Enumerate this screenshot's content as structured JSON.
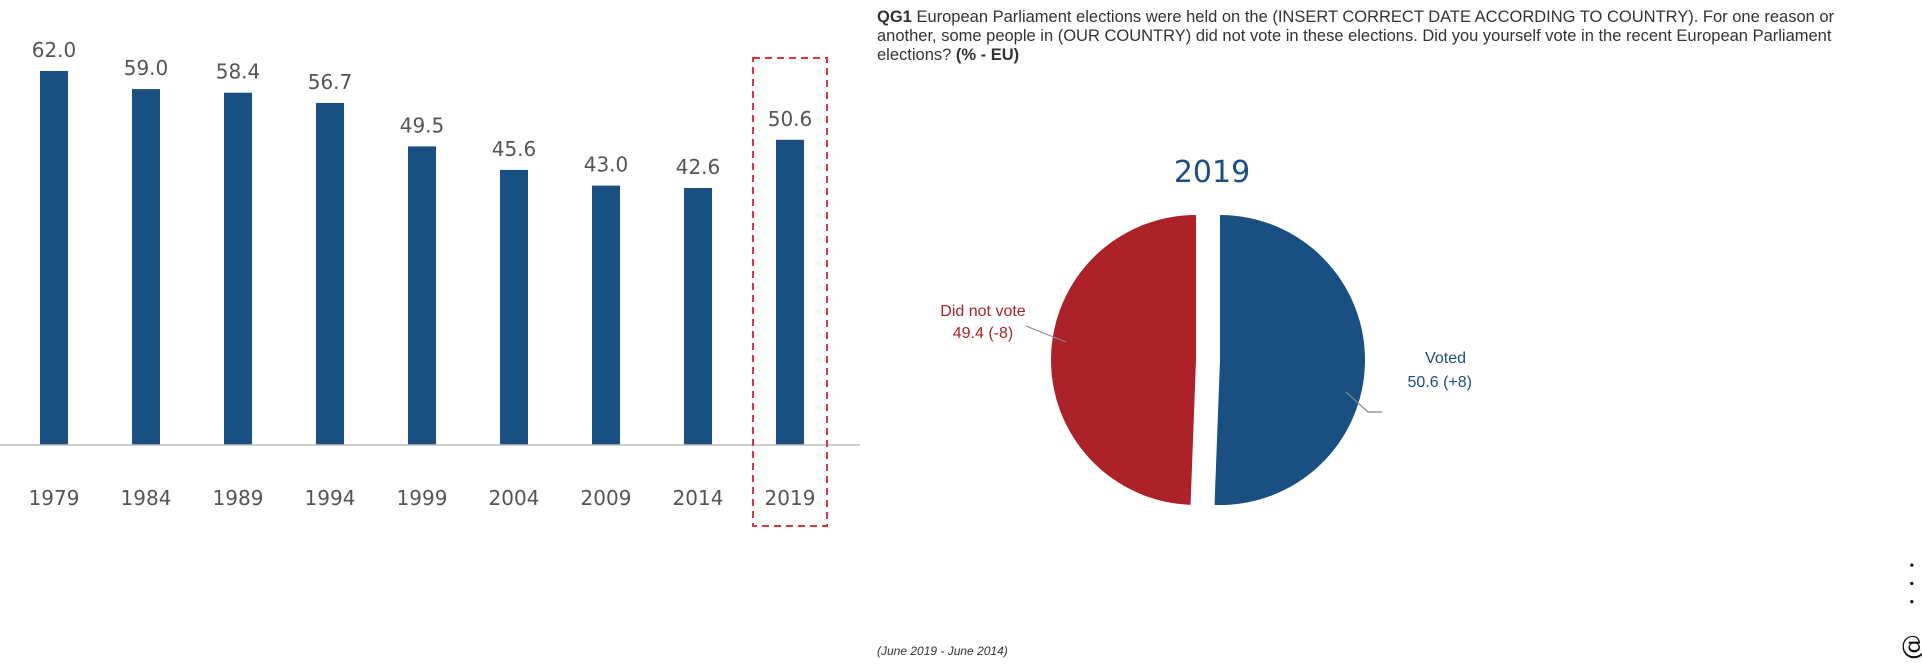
{
  "chart_data": [
    {
      "type": "bar",
      "categories": [
        "1979",
        "1984",
        "1989",
        "1994",
        "1999",
        "2004",
        "2009",
        "2014",
        "2019"
      ],
      "values": [
        62.0,
        59.0,
        58.4,
        56.7,
        49.5,
        45.6,
        43.0,
        42.6,
        50.6
      ],
      "value_labels": [
        "62.0",
        "59.0",
        "58.4",
        "56.7",
        "49.5",
        "45.6",
        "43.0",
        "42.6",
        "50.6"
      ],
      "highlighted_category": "2019",
      "title": "",
      "xlabel": "",
      "ylabel": "",
      "ylim": [
        0,
        65
      ],
      "grid": false,
      "colors": {
        "bar": "#1a4f82",
        "highlight_box": "#d9363e",
        "axis": "#bfbfbf",
        "label": "#555555"
      }
    },
    {
      "type": "pie",
      "title": "2019",
      "slices": [
        {
          "label": "Voted",
          "value": 50.6,
          "value_label": "50.6 (+8)",
          "color": "#1a4f82"
        },
        {
          "label": "Did not vote",
          "value": 49.4,
          "value_label": "49.4 (-8)",
          "color": "#ad2229"
        }
      ],
      "colors": {
        "title": "#1a4f82",
        "voted_label": "#1a4f82",
        "not_voted_label": "#ad2229",
        "leader": "#888888"
      }
    }
  ],
  "question": {
    "code": "QG1",
    "text": "European Parliament elections were held on the (INSERT CORRECT DATE ACCORDING TO COUNTRY). For one reason or another, some people in (OUR COUNTRY) did not vote in these elections. Did you yourself vote in the recent European Parliament elections?",
    "unit": "(% - EU)"
  },
  "footnote": "(June 2019 - June 2014)",
  "side_text": "@ ···"
}
